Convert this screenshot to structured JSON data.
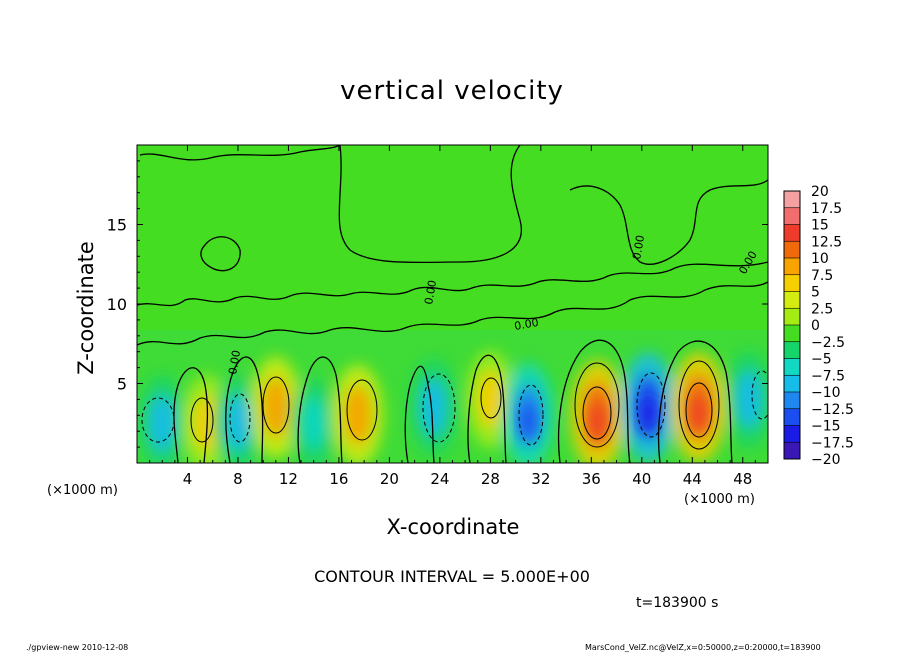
{
  "chart_data": {
    "type": "heatmap",
    "title": "vertical velocity",
    "xlabel": "X-coordinate",
    "ylabel": "Z-coordinate",
    "x_unit_label": "(×1000 m)",
    "x_ticks": [
      4,
      8,
      12,
      16,
      20,
      24,
      28,
      32,
      36,
      40,
      44,
      48
    ],
    "y_ticks": [
      5,
      10,
      15
    ],
    "xlim": [
      0,
      50
    ],
    "ylim": [
      0,
      20
    ],
    "contour_interval_label": "CONTOUR INTERVAL = 5.000E+00",
    "time_label": "t=183900 s",
    "contour_labels": [
      "0.00"
    ],
    "colorbar": {
      "levels": [
        20,
        17.5,
        15,
        12.5,
        10,
        7.5,
        5,
        2.5,
        0,
        -2.5,
        -5,
        -7.5,
        -10,
        -12.5,
        -15,
        -17.5,
        -20
      ],
      "labels": [
        "20",
        "17.5",
        "15",
        "12.5",
        "10",
        "7.5",
        "5",
        "2.5",
        "0",
        "−2.5",
        "−5",
        "−7.5",
        "−10",
        "−12.5",
        "−15",
        "−17.5",
        "−20"
      ],
      "colors": [
        "#f6a1a1",
        "#f26d6d",
        "#ee3b2b",
        "#f06a0c",
        "#f7a300",
        "#f6cf00",
        "#d5ec10",
        "#a4ec14",
        "#44dd22",
        "#14d46a",
        "#12d7c2",
        "#16bde8",
        "#1f88f0",
        "#1b4ef0",
        "#1a1ce6",
        "#3a18b8",
        "#6612c0"
      ]
    },
    "cells": [
      {
        "x": 2,
        "z": 2.5,
        "w": -7.5
      },
      {
        "x": 5.5,
        "z": 2.5,
        "w": 7.5
      },
      {
        "x": 8,
        "z": 2.5,
        "w": -7.5
      },
      {
        "x": 11,
        "z": 3.5,
        "w": 9
      },
      {
        "x": 14,
        "z": 2.5,
        "w": -5
      },
      {
        "x": 17.5,
        "z": 3,
        "w": 9
      },
      {
        "x": 23.5,
        "z": 3.5,
        "w": -7.5
      },
      {
        "x": 28,
        "z": 4,
        "w": 7.5
      },
      {
        "x": 31,
        "z": 3,
        "w": -10
      },
      {
        "x": 36.5,
        "z": 3,
        "w": 12.5
      },
      {
        "x": 40.5,
        "z": 3.5,
        "w": -12.5
      },
      {
        "x": 44.5,
        "z": 3.5,
        "w": 12.5
      },
      {
        "x": 48.5,
        "z": 4,
        "w": -7.5
      }
    ]
  },
  "footer": {
    "left": "./gpview-new   2010-12-08",
    "right": "MarsCond_VelZ.nc@VelZ,x=0:50000,z=0:20000,t=183900"
  }
}
